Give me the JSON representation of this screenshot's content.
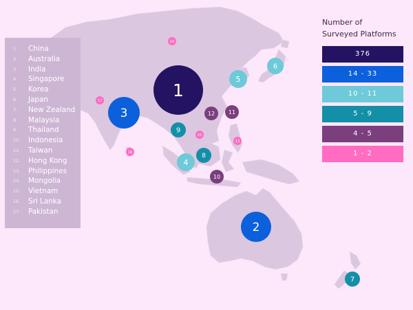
{
  "legend": {
    "title_line1": "Number of",
    "title_line2": "Surveyed Platforms",
    "items": [
      {
        "label": "376",
        "color": "#241363"
      },
      {
        "label": "14 - 33",
        "color": "#0c60dc"
      },
      {
        "label": "10 - 11",
        "color": "#6ecad8"
      },
      {
        "label": "5 - 9",
        "color": "#138fa8"
      },
      {
        "label": "4 - 5",
        "color": "#7a3f7c"
      },
      {
        "label": "1 - 2",
        "color": "#ff6cc2"
      }
    ]
  },
  "countries": [
    {
      "number": "1.",
      "name": "China"
    },
    {
      "number": "2.",
      "name": "Australia"
    },
    {
      "number": "3.",
      "name": "India"
    },
    {
      "number": "4.",
      "name": "Singapore"
    },
    {
      "number": "5.",
      "name": "Korea"
    },
    {
      "number": "6.",
      "name": "Japan"
    },
    {
      "number": "7.",
      "name": "New Zealand"
    },
    {
      "number": "8.",
      "name": "Malaysia"
    },
    {
      "number": "9.",
      "name": "Thailand"
    },
    {
      "number": "10.",
      "name": "Indonesia"
    },
    {
      "number": "11.",
      "name": "Taiwan"
    },
    {
      "number": "12.",
      "name": "Hong Kong"
    },
    {
      "number": "13.",
      "name": "Philippines"
    },
    {
      "number": "14.",
      "name": "Mongolia"
    },
    {
      "number": "15.",
      "name": "Vietnam"
    },
    {
      "number": "16.",
      "name": "Sri Lanka"
    },
    {
      "number": "17.",
      "name": "Pakistan"
    }
  ],
  "markers": [
    {
      "label": "1",
      "color": "#241363"
    },
    {
      "label": "2",
      "color": "#0c60dc"
    },
    {
      "label": "3",
      "color": "#0c60dc"
    },
    {
      "label": "4",
      "color": "#6ecad8"
    },
    {
      "label": "5",
      "color": "#6ecad8"
    },
    {
      "label": "6",
      "color": "#6ecad8"
    },
    {
      "label": "7",
      "color": "#138fa8"
    },
    {
      "label": "8",
      "color": "#138fa8"
    },
    {
      "label": "9",
      "color": "#138fa8"
    },
    {
      "label": "10",
      "color": "#7a3f7c"
    },
    {
      "label": "11",
      "color": "#7a3f7c"
    },
    {
      "label": "12",
      "color": "#7a3f7c"
    },
    {
      "label": "13",
      "color": "#ff6cc2"
    },
    {
      "label": "14",
      "color": "#ff6cc2"
    },
    {
      "label": "15",
      "color": "#ff6cc2"
    },
    {
      "label": "16",
      "color": "#ff6cc2"
    },
    {
      "label": "17",
      "color": "#ff6cc2"
    }
  ]
}
